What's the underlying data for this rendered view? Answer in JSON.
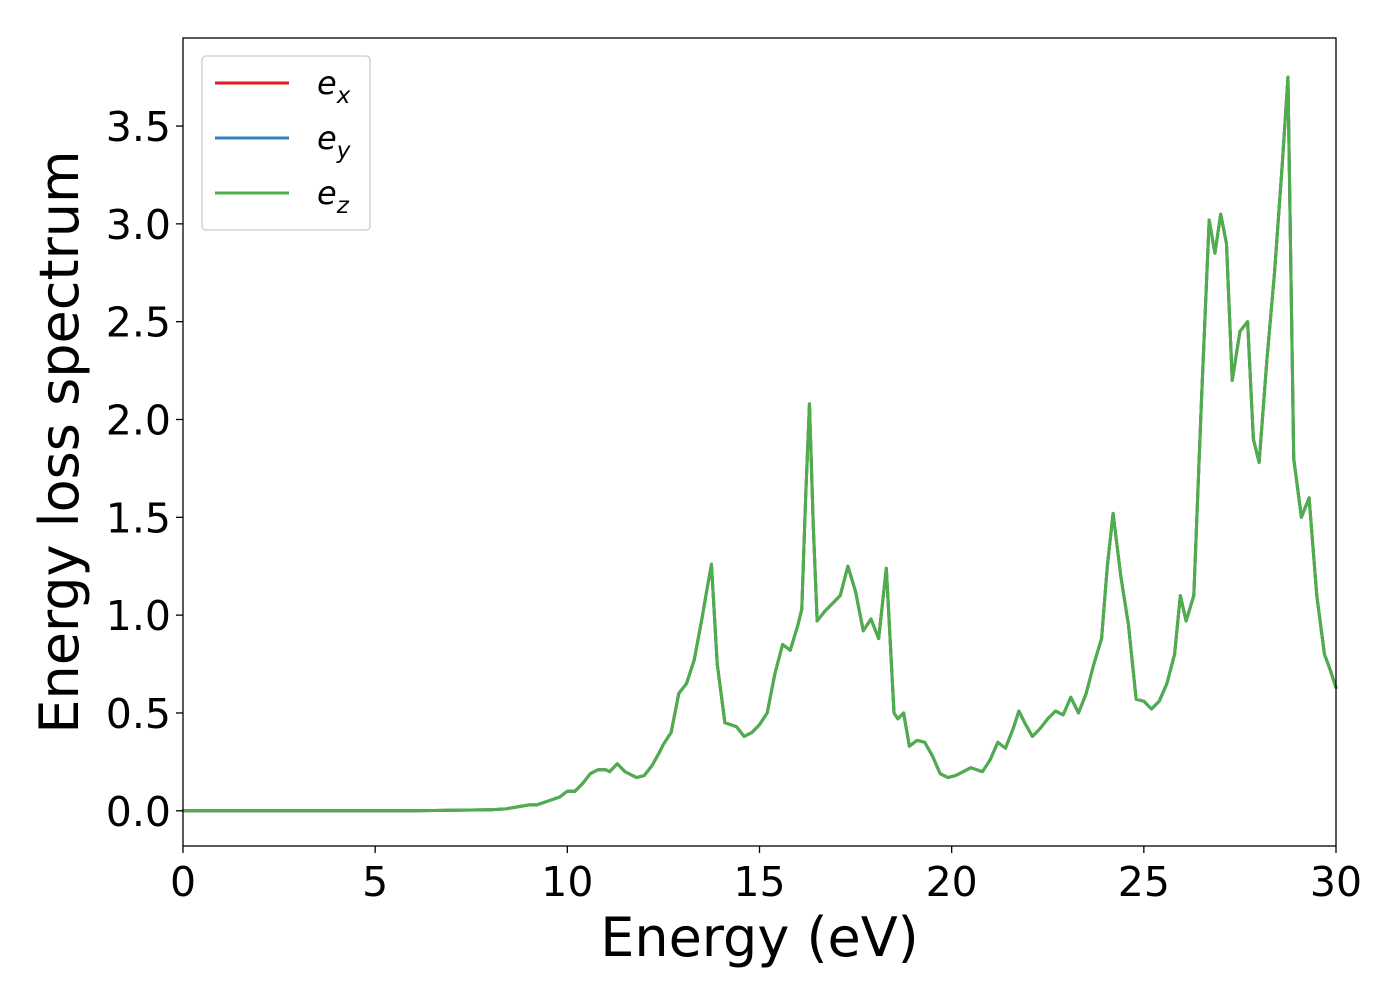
{
  "chart_data": {
    "type": "line",
    "title": "",
    "xlabel": "Energy (eV)",
    "ylabel": "Energy loss spectrum",
    "xlim": [
      0,
      30
    ],
    "ylim": [
      -0.18,
      3.95
    ],
    "xticks": [
      0,
      5,
      10,
      15,
      20,
      25,
      30
    ],
    "xtick_labels": [
      "0",
      "5",
      "10",
      "15",
      "20",
      "25",
      "30"
    ],
    "yticks": [
      0.0,
      0.5,
      1.0,
      1.5,
      2.0,
      2.5,
      3.0,
      3.5
    ],
    "ytick_labels": [
      "0.0",
      "0.5",
      "1.0",
      "1.5",
      "2.0",
      "2.5",
      "3.0",
      "3.5"
    ],
    "grid": false,
    "legend": {
      "placement": "upper-left",
      "entries": [
        {
          "base": "e",
          "sub": "x",
          "color": "#e41a1c"
        },
        {
          "base": "e",
          "sub": "y",
          "color": "#377eb8"
        },
        {
          "base": "e",
          "sub": "z",
          "color": "#4daf4a"
        }
      ]
    },
    "series": [
      {
        "name": "e_x",
        "color": "#e41a1c",
        "x": [
          0,
          2,
          4,
          6,
          8,
          8.4,
          8.7,
          9.0,
          9.2,
          9.5,
          9.8,
          10.0,
          10.2,
          10.4,
          10.6,
          10.8,
          11.0,
          11.1,
          11.3,
          11.5,
          11.8,
          12.0,
          12.2,
          12.4,
          12.5,
          12.7,
          12.9,
          13.1,
          13.3,
          13.5,
          13.65,
          13.75,
          13.9,
          14.1,
          14.4,
          14.6,
          14.8,
          15.0,
          15.2,
          15.4,
          15.6,
          15.8,
          16.0,
          16.1,
          16.2,
          16.3,
          16.4,
          16.5,
          16.7,
          16.9,
          17.1,
          17.3,
          17.5,
          17.7,
          17.9,
          18.1,
          18.3,
          18.5,
          18.6,
          18.75,
          18.9,
          19.1,
          19.3,
          19.5,
          19.7,
          19.9,
          20.1,
          20.5,
          20.8,
          21.0,
          21.2,
          21.4,
          21.6,
          21.75,
          21.9,
          22.1,
          22.3,
          22.5,
          22.7,
          22.9,
          23.1,
          23.3,
          23.5,
          23.7,
          23.9,
          24.05,
          24.2,
          24.4,
          24.6,
          24.8,
          25.0,
          25.2,
          25.4,
          25.6,
          25.8,
          25.95,
          26.1,
          26.3,
          26.5,
          26.7,
          26.85,
          27.0,
          27.15,
          27.3,
          27.5,
          27.7,
          27.85,
          28.0,
          28.2,
          28.4,
          28.6,
          28.75,
          28.9,
          29.1,
          29.3,
          29.5,
          29.7,
          29.85,
          30.0
        ],
        "y": [
          0.0,
          0.0,
          0.0,
          0.0,
          0.005,
          0.01,
          0.02,
          0.03,
          0.03,
          0.05,
          0.07,
          0.1,
          0.1,
          0.14,
          0.19,
          0.21,
          0.21,
          0.2,
          0.24,
          0.2,
          0.17,
          0.18,
          0.23,
          0.3,
          0.34,
          0.4,
          0.6,
          0.65,
          0.77,
          0.98,
          1.15,
          1.26,
          0.75,
          0.45,
          0.43,
          0.38,
          0.4,
          0.44,
          0.5,
          0.7,
          0.85,
          0.82,
          0.95,
          1.03,
          1.6,
          2.08,
          1.45,
          0.97,
          1.02,
          1.06,
          1.1,
          1.25,
          1.12,
          0.92,
          0.98,
          0.88,
          1.24,
          0.5,
          0.47,
          0.5,
          0.33,
          0.36,
          0.35,
          0.28,
          0.19,
          0.17,
          0.18,
          0.22,
          0.2,
          0.26,
          0.35,
          0.32,
          0.42,
          0.51,
          0.45,
          0.38,
          0.42,
          0.47,
          0.51,
          0.49,
          0.58,
          0.5,
          0.6,
          0.75,
          0.88,
          1.25,
          1.52,
          1.2,
          0.95,
          0.57,
          0.56,
          0.52,
          0.56,
          0.65,
          0.8,
          1.1,
          0.97,
          1.1,
          2.1,
          3.02,
          2.85,
          3.05,
          2.9,
          2.2,
          2.45,
          2.5,
          1.9,
          1.78,
          2.3,
          2.75,
          3.3,
          3.75,
          1.8,
          1.5,
          1.6,
          1.1,
          0.8,
          0.72,
          0.63
        ]
      },
      {
        "name": "e_y",
        "color": "#377eb8",
        "x": [
          0,
          2,
          4,
          6,
          8,
          8.4,
          8.7,
          9.0,
          9.2,
          9.5,
          9.8,
          10.0,
          10.2,
          10.4,
          10.6,
          10.8,
          11.0,
          11.1,
          11.3,
          11.5,
          11.8,
          12.0,
          12.2,
          12.4,
          12.5,
          12.7,
          12.9,
          13.1,
          13.3,
          13.5,
          13.65,
          13.75,
          13.9,
          14.1,
          14.4,
          14.6,
          14.8,
          15.0,
          15.2,
          15.4,
          15.6,
          15.8,
          16.0,
          16.1,
          16.2,
          16.3,
          16.4,
          16.5,
          16.7,
          16.9,
          17.1,
          17.3,
          17.5,
          17.7,
          17.9,
          18.1,
          18.3,
          18.5,
          18.6,
          18.75,
          18.9,
          19.1,
          19.3,
          19.5,
          19.7,
          19.9,
          20.1,
          20.5,
          20.8,
          21.0,
          21.2,
          21.4,
          21.6,
          21.75,
          21.9,
          22.1,
          22.3,
          22.5,
          22.7,
          22.9,
          23.1,
          23.3,
          23.5,
          23.7,
          23.9,
          24.05,
          24.2,
          24.4,
          24.6,
          24.8,
          25.0,
          25.2,
          25.4,
          25.6,
          25.8,
          25.95,
          26.1,
          26.3,
          26.5,
          26.7,
          26.85,
          27.0,
          27.15,
          27.3,
          27.5,
          27.7,
          27.85,
          28.0,
          28.2,
          28.4,
          28.6,
          28.75,
          28.9,
          29.1,
          29.3,
          29.5,
          29.7,
          29.85,
          30.0
        ],
        "y": [
          0.0,
          0.0,
          0.0,
          0.0,
          0.005,
          0.01,
          0.02,
          0.03,
          0.03,
          0.05,
          0.07,
          0.1,
          0.1,
          0.14,
          0.19,
          0.21,
          0.21,
          0.2,
          0.24,
          0.2,
          0.17,
          0.18,
          0.23,
          0.3,
          0.34,
          0.4,
          0.6,
          0.65,
          0.77,
          0.98,
          1.15,
          1.26,
          0.75,
          0.45,
          0.43,
          0.38,
          0.4,
          0.44,
          0.5,
          0.7,
          0.85,
          0.82,
          0.95,
          1.03,
          1.6,
          2.08,
          1.45,
          0.97,
          1.02,
          1.06,
          1.1,
          1.25,
          1.12,
          0.92,
          0.98,
          0.88,
          1.24,
          0.5,
          0.47,
          0.5,
          0.33,
          0.36,
          0.35,
          0.28,
          0.19,
          0.17,
          0.18,
          0.22,
          0.2,
          0.26,
          0.35,
          0.32,
          0.42,
          0.51,
          0.45,
          0.38,
          0.42,
          0.47,
          0.51,
          0.49,
          0.58,
          0.5,
          0.6,
          0.75,
          0.88,
          1.25,
          1.52,
          1.2,
          0.95,
          0.57,
          0.56,
          0.52,
          0.56,
          0.65,
          0.8,
          1.1,
          0.97,
          1.1,
          2.1,
          3.02,
          2.85,
          3.05,
          2.9,
          2.2,
          2.45,
          2.5,
          1.9,
          1.78,
          2.3,
          2.75,
          3.3,
          3.75,
          1.8,
          1.5,
          1.6,
          1.1,
          0.8,
          0.72,
          0.63
        ]
      },
      {
        "name": "e_z",
        "color": "#4daf4a",
        "x": [
          0,
          2,
          4,
          6,
          8,
          8.4,
          8.7,
          9.0,
          9.2,
          9.5,
          9.8,
          10.0,
          10.2,
          10.4,
          10.6,
          10.8,
          11.0,
          11.1,
          11.3,
          11.5,
          11.8,
          12.0,
          12.2,
          12.4,
          12.5,
          12.7,
          12.9,
          13.1,
          13.3,
          13.5,
          13.65,
          13.75,
          13.9,
          14.1,
          14.4,
          14.6,
          14.8,
          15.0,
          15.2,
          15.4,
          15.6,
          15.8,
          16.0,
          16.1,
          16.2,
          16.3,
          16.4,
          16.5,
          16.7,
          16.9,
          17.1,
          17.3,
          17.5,
          17.7,
          17.9,
          18.1,
          18.3,
          18.5,
          18.6,
          18.75,
          18.9,
          19.1,
          19.3,
          19.5,
          19.7,
          19.9,
          20.1,
          20.5,
          20.8,
          21.0,
          21.2,
          21.4,
          21.6,
          21.75,
          21.9,
          22.1,
          22.3,
          22.5,
          22.7,
          22.9,
          23.1,
          23.3,
          23.5,
          23.7,
          23.9,
          24.05,
          24.2,
          24.4,
          24.6,
          24.8,
          25.0,
          25.2,
          25.4,
          25.6,
          25.8,
          25.95,
          26.1,
          26.3,
          26.5,
          26.7,
          26.85,
          27.0,
          27.15,
          27.3,
          27.5,
          27.7,
          27.85,
          28.0,
          28.2,
          28.4,
          28.6,
          28.75,
          28.9,
          29.1,
          29.3,
          29.5,
          29.7,
          29.85,
          30.0
        ],
        "y": [
          0.0,
          0.0,
          0.0,
          0.0,
          0.005,
          0.01,
          0.02,
          0.03,
          0.03,
          0.05,
          0.07,
          0.1,
          0.1,
          0.14,
          0.19,
          0.21,
          0.21,
          0.2,
          0.24,
          0.2,
          0.17,
          0.18,
          0.23,
          0.3,
          0.34,
          0.4,
          0.6,
          0.65,
          0.77,
          0.98,
          1.15,
          1.26,
          0.75,
          0.45,
          0.43,
          0.38,
          0.4,
          0.44,
          0.5,
          0.7,
          0.85,
          0.82,
          0.95,
          1.03,
          1.6,
          2.08,
          1.45,
          0.97,
          1.02,
          1.06,
          1.1,
          1.25,
          1.12,
          0.92,
          0.98,
          0.88,
          1.24,
          0.5,
          0.47,
          0.5,
          0.33,
          0.36,
          0.35,
          0.28,
          0.19,
          0.17,
          0.18,
          0.22,
          0.2,
          0.26,
          0.35,
          0.32,
          0.42,
          0.51,
          0.45,
          0.38,
          0.42,
          0.47,
          0.51,
          0.49,
          0.58,
          0.5,
          0.6,
          0.75,
          0.88,
          1.25,
          1.52,
          1.2,
          0.95,
          0.57,
          0.56,
          0.52,
          0.56,
          0.65,
          0.8,
          1.1,
          0.97,
          1.1,
          2.1,
          3.02,
          2.85,
          3.05,
          2.9,
          2.2,
          2.45,
          2.5,
          1.9,
          1.78,
          2.3,
          2.75,
          3.3,
          3.75,
          1.8,
          1.5,
          1.6,
          1.1,
          0.8,
          0.72,
          0.63
        ]
      }
    ]
  }
}
